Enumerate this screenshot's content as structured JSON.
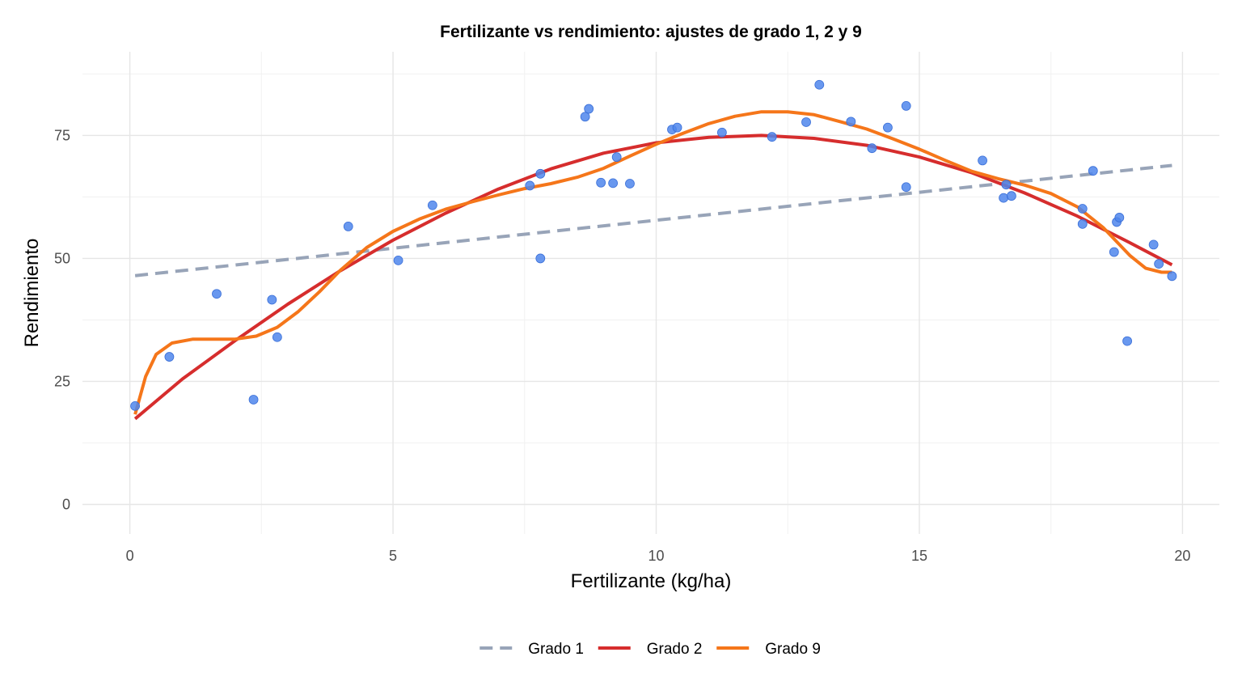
{
  "chart_data": {
    "type": "scatter",
    "title": "Fertilizante vs rendimiento: ajustes de grado 1, 2 y 9",
    "xlabel": "Fertilizante (kg/ha)",
    "ylabel": "Rendimiento",
    "xlim": [
      -0.9,
      20.7
    ],
    "ylim": [
      -6,
      92
    ],
    "x_ticks": [
      0,
      5,
      10,
      15,
      20
    ],
    "y_ticks": [
      0,
      25,
      50,
      75
    ],
    "x_tick_labels": [
      "0",
      "5",
      "10",
      "15",
      "20"
    ],
    "y_tick_labels": [
      "0",
      "25",
      "50",
      "75"
    ],
    "grid": true,
    "legend_position": "bottom",
    "points": {
      "color": "#4f86ec",
      "x": [
        0.1,
        0.75,
        1.65,
        2.35,
        2.7,
        2.8,
        4.15,
        5.1,
        5.75,
        7.6,
        7.8,
        7.8,
        8.65,
        8.72,
        8.95,
        9.18,
        9.25,
        9.5,
        10.3,
        10.4,
        11.25,
        12.2,
        12.85,
        13.1,
        13.7,
        14.1,
        14.4,
        14.75,
        14.75,
        16.2,
        16.6,
        16.65,
        16.75,
        18.1,
        18.1,
        18.3,
        18.7,
        18.75,
        18.8,
        18.95,
        19.45,
        19.55,
        19.8
      ],
      "y": [
        20,
        30,
        42.8,
        21.3,
        41.6,
        34,
        56.5,
        49.6,
        60.8,
        64.8,
        67.2,
        50,
        78.8,
        80.4,
        65.4,
        65.3,
        70.6,
        65.2,
        76.2,
        76.6,
        75.6,
        74.7,
        77.7,
        85.3,
        77.8,
        72.4,
        76.6,
        81,
        64.5,
        69.9,
        62.3,
        65,
        62.7,
        60.1,
        57,
        67.8,
        51.3,
        57.4,
        58.3,
        33.2,
        52.8,
        48.9,
        46.4
      ]
    },
    "series": [
      {
        "name": "Grado 1",
        "color": "#98a4b8",
        "dash": true,
        "x": [
          0.1,
          19.8
        ],
        "y": [
          46.5,
          68.9
        ]
      },
      {
        "name": "Grado 2",
        "color": "#d62d2d",
        "x": [
          0.1,
          1,
          2,
          3,
          4,
          5,
          6,
          7,
          8,
          9,
          10,
          11,
          12,
          13,
          14,
          15,
          16,
          17,
          18,
          19,
          19.8
        ],
        "y": [
          17.4,
          25.5,
          33.3,
          40.7,
          47.5,
          53.7,
          59.2,
          64.1,
          68.2,
          71.4,
          73.5,
          74.6,
          75,
          74.4,
          73,
          70.6,
          67.4,
          63.3,
          58.6,
          53.2,
          48.7
        ]
      },
      {
        "name": "Grado 9",
        "color": "#f5761a",
        "x": [
          0.1,
          0.3,
          0.5,
          0.8,
          1.2,
          1.6,
          2,
          2.4,
          2.8,
          3.2,
          3.6,
          4,
          4.5,
          5,
          5.5,
          6,
          6.5,
          7,
          7.5,
          8,
          8.5,
          9,
          9.5,
          10,
          10.5,
          11,
          11.5,
          12,
          12.5,
          13,
          13.5,
          14,
          14.5,
          15,
          15.5,
          16,
          16.5,
          17,
          17.5,
          18,
          18.5,
          19,
          19.3,
          19.6,
          19.8
        ],
        "y": [
          18.3,
          26,
          30.5,
          32.8,
          33.6,
          33.6,
          33.6,
          34.2,
          36,
          39.2,
          43.2,
          47.6,
          52.2,
          55.5,
          58,
          60,
          61.5,
          62.9,
          64.2,
          65.2,
          66.5,
          68.3,
          70.8,
          73.2,
          75.4,
          77.4,
          78.9,
          79.8,
          79.8,
          79.2,
          77.8,
          76.3,
          74.3,
          72.2,
          69.9,
          67.7,
          66.2,
          64.9,
          63.2,
          60.5,
          56.2,
          50.6,
          48,
          47.2,
          47.2
        ]
      }
    ]
  }
}
